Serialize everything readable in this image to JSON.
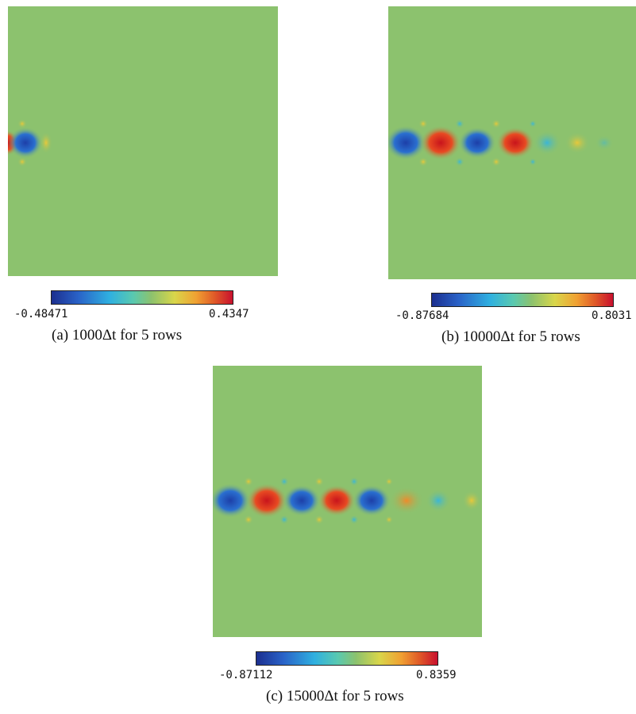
{
  "panels": [
    {
      "colorbar_min": "-0.48471",
      "colorbar_max": "0.4347",
      "caption": "(a) 1000Δt for 5 rows"
    },
    {
      "colorbar_min": "-0.87684",
      "colorbar_max": "0.8031",
      "caption": "(b) 10000Δt for 5 rows"
    },
    {
      "colorbar_min": "-0.87112",
      "colorbar_max": "0.8359",
      "caption": "(c) 15000Δt for 5 rows"
    }
  ],
  "colors": {
    "background_field": "#8cc26e",
    "blue": "#1f4fb8",
    "red": "#d8201e",
    "cyan": "#3ab6d8",
    "yellow": "#d8d24a",
    "orange": "#f08a2a"
  }
}
